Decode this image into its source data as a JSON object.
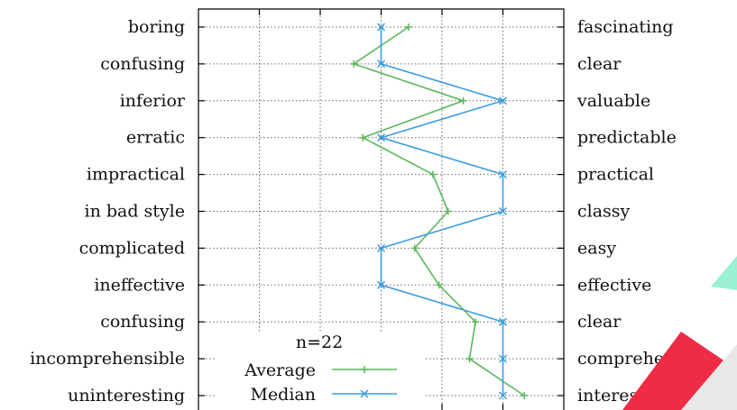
{
  "chart_data": {
    "type": "line",
    "orientation": "horizontal",
    "left_labels": [
      "boring",
      "confusing",
      "inferior",
      "erratic",
      "impractical",
      "in bad style",
      "complicated",
      "ineffective",
      "confusing",
      "incomprehensible",
      "uninteresting"
    ],
    "right_labels": [
      "fascinating",
      "clear",
      "valuable",
      "predictable",
      "practical",
      "classy",
      "easy",
      "effective",
      "clear",
      "comprehensible",
      "interesting"
    ],
    "x_range": [
      -3,
      3
    ],
    "grid": true,
    "series": [
      {
        "name": "Average",
        "color": "#5cb85c",
        "marker": "plus",
        "values": [
          0.45,
          -0.45,
          1.35,
          -0.3,
          0.85,
          1.1,
          0.55,
          0.95,
          1.55,
          1.45,
          2.35
        ]
      },
      {
        "name": "Median",
        "color": "#3a9ee0",
        "marker": "x",
        "values": [
          0,
          0,
          2,
          0,
          2,
          2,
          0,
          0,
          2,
          2,
          2
        ]
      }
    ],
    "legend": {
      "title": "n=22",
      "placement": "bottom-center"
    }
  }
}
